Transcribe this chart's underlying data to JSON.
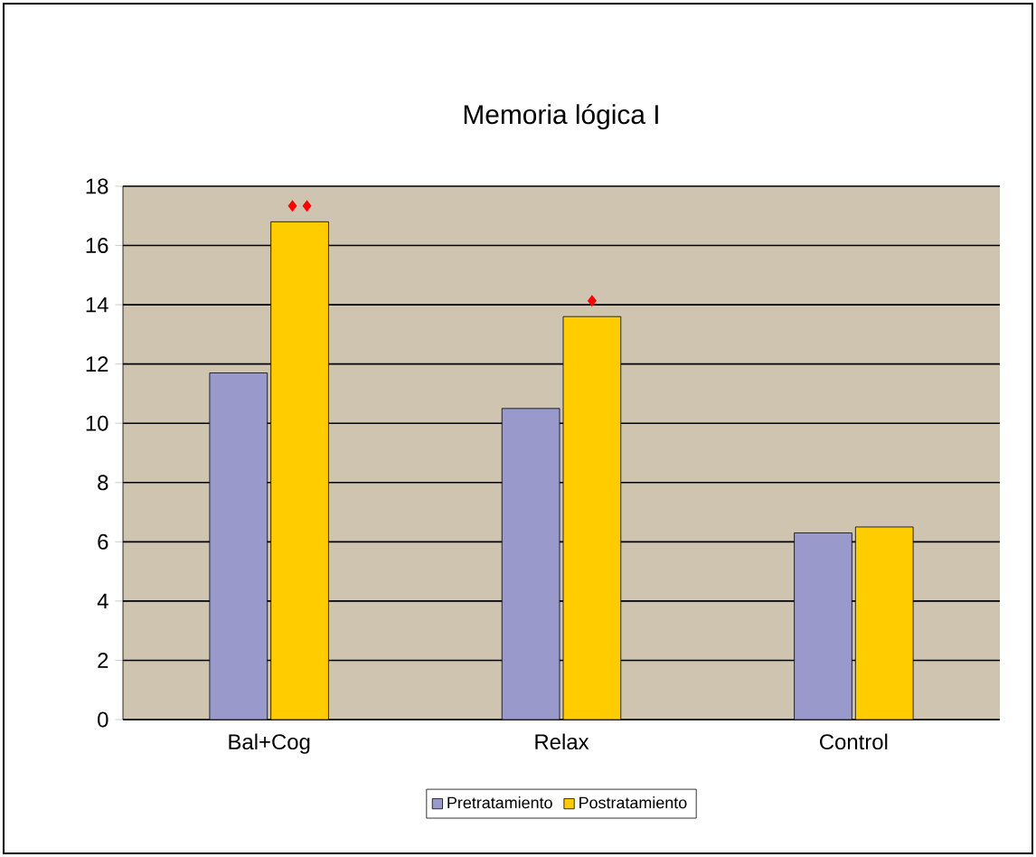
{
  "chart_data": {
    "type": "bar",
    "title": "Memoria lógica I",
    "categories": [
      "Bal+Cog",
      "Relax",
      "Control"
    ],
    "series": [
      {
        "name": "Pretratamiento",
        "color": "#9999cc",
        "values": [
          11.7,
          10.5,
          6.3
        ]
      },
      {
        "name": "Postratamiento",
        "color": "#ffcc00",
        "values": [
          16.8,
          13.6,
          6.5
        ]
      }
    ],
    "ylim": [
      0,
      18
    ],
    "yticks": [
      0,
      2,
      4,
      6,
      8,
      10,
      12,
      14,
      16,
      18
    ],
    "grid": "y",
    "legend": "bottom",
    "annotations": [
      "♦♦",
      "♦"
    ]
  }
}
